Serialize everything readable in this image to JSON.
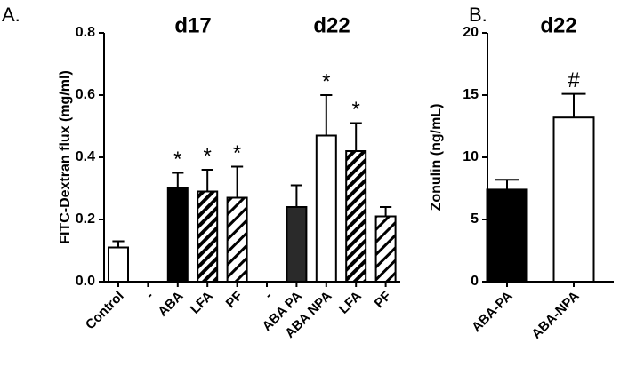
{
  "chart_data": [
    {
      "type": "bar",
      "panel": "A.",
      "ylabel": "FITC-Dextran flux (mg/ml)",
      "group_titles": [
        "d17",
        "d22"
      ],
      "categories": [
        "Control",
        "-",
        "ABA",
        "LFA",
        "PF",
        "-",
        "ABA PA",
        "ABA NPA",
        "LFA",
        "PF"
      ],
      "values": [
        0.11,
        null,
        0.3,
        0.29,
        0.27,
        null,
        0.24,
        0.47,
        0.42,
        0.21
      ],
      "errors": [
        0.02,
        null,
        0.05,
        0.07,
        0.1,
        null,
        0.07,
        0.13,
        0.09,
        0.03
      ],
      "fills": [
        "white",
        null,
        "black",
        "hatch",
        "hatch-wide",
        null,
        "dark",
        "white",
        "hatch",
        "hatch-wide"
      ],
      "significance": [
        null,
        null,
        "*",
        "*",
        "*",
        null,
        null,
        "*",
        "*",
        null
      ],
      "ylim": [
        0,
        0.8
      ],
      "yticks": [
        {
          "value": 0,
          "label": "0.0"
        },
        0.2,
        0.4,
        0.6,
        0.8
      ]
    },
    {
      "type": "bar",
      "panel": "B.",
      "title": "d22",
      "ylabel": "Zonulin (ng/mL)",
      "categories": [
        "ABA-PA",
        "ABA-NPA"
      ],
      "values": [
        7.4,
        13.2
      ],
      "errors": [
        0.8,
        1.9
      ],
      "fills": [
        "black",
        "white"
      ],
      "significance": [
        null,
        "#"
      ],
      "ylim": [
        0,
        20
      ],
      "yticks": [
        0,
        5,
        10,
        15,
        20
      ]
    }
  ]
}
